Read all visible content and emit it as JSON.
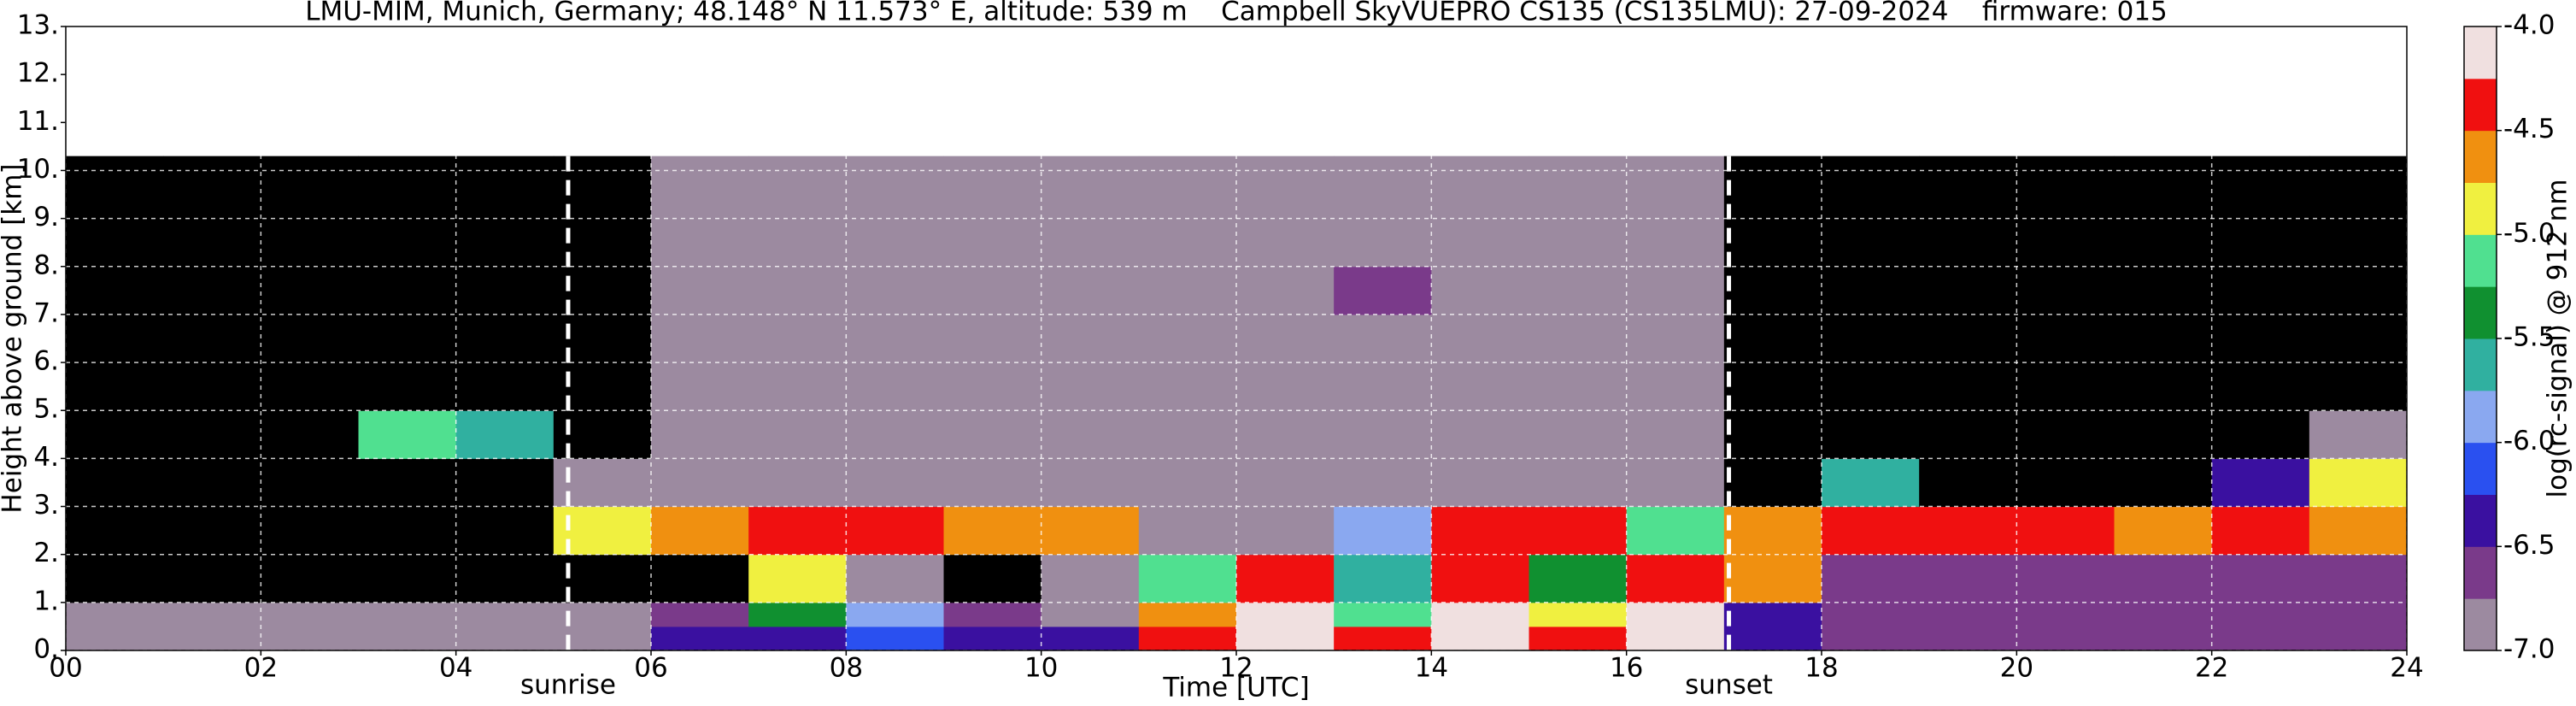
{
  "chart_data": {
    "type": "heatmap",
    "title": "LMU-MIM, Munich, Germany; 48.148° N 11.573° E, altitude: 539 m    Campbell SkyVUEPRO CS135 (CS135LMU): 27-09-2024    firmware: 015",
    "xlabel": "Time [UTC]",
    "ylabel": "Height above ground [km]",
    "colorbar_label": "log(rc-signal) @ 912 nm",
    "x": [
      0,
      1,
      2,
      3,
      4,
      5,
      6,
      7,
      8,
      9,
      10,
      11,
      12,
      13,
      14,
      15,
      16,
      17,
      18,
      19,
      20,
      21,
      22,
      23,
      24
    ],
    "y": [
      0,
      0.5,
      1,
      2,
      3,
      4,
      5,
      6,
      7,
      8,
      9,
      10.3
    ],
    "z": [
      [
        -6.8,
        -6.8,
        -6.8,
        -6.8,
        -6.8,
        -6.8,
        -6.5,
        -6.5,
        -6.2,
        -6.5,
        -6.5,
        -4.5,
        -4.1,
        -4.3,
        -4.1,
        -4.3,
        -4.1,
        -6.3,
        -6.6,
        -6.6,
        -6.6,
        -6.6,
        -6.6,
        -6.6
      ],
      [
        -6.9,
        -6.9,
        -6.9,
        -6.9,
        -6.9,
        -7.0,
        -6.7,
        -5.5,
        -5.8,
        -6.7,
        -6.8,
        -4.6,
        -4.1,
        -5.2,
        -4.1,
        -5.0,
        -4.2,
        -6.5,
        -6.7,
        -6.7,
        -6.7,
        -6.7,
        -6.7,
        -6.7
      ],
      [
        -7.2,
        -7.2,
        -7.2,
        -7.2,
        -7.2,
        -7.2,
        -7.1,
        -5.0,
        -7.0,
        -7.1,
        -7.0,
        -5.2,
        -4.4,
        -5.6,
        -4.3,
        -5.3,
        -4.4,
        -4.6,
        -6.6,
        -6.6,
        -6.6,
        -6.6,
        -6.6,
        -6.6
      ],
      [
        -7.3,
        -7.3,
        -7.3,
        -7.3,
        -7.3,
        -4.8,
        -4.6,
        -4.5,
        -4.5,
        -4.6,
        -4.7,
        -6.9,
        -6.9,
        -5.8,
        -4.5,
        -4.4,
        -5.2,
        -4.6,
        -4.5,
        -4.5,
        -4.5,
        -4.6,
        -4.5,
        -4.6
      ],
      [
        -7.3,
        -7.3,
        -7.3,
        -7.3,
        -7.2,
        -7.0,
        -7.0,
        -7.0,
        -7.0,
        -7.0,
        -7.0,
        -7.0,
        -7.0,
        -7.0,
        -7.0,
        -7.0,
        -7.0,
        -7.3,
        -5.6,
        -7.2,
        -7.2,
        -7.2,
        -6.5,
        -4.8
      ],
      [
        -7.3,
        -7.3,
        -7.3,
        -5.2,
        -5.6,
        -7.1,
        -7.0,
        -7.0,
        -7.0,
        -7.0,
        -7.0,
        -7.0,
        -7.0,
        -7.0,
        -7.0,
        -6.9,
        -7.0,
        -7.3,
        -7.3,
        -7.3,
        -7.3,
        -7.3,
        -7.3,
        -6.8
      ],
      [
        -7.3,
        -7.3,
        -7.3,
        -7.3,
        -7.3,
        -7.1,
        -6.9,
        -6.9,
        -6.9,
        -6.9,
        -6.9,
        -7.0,
        -7.0,
        -6.8,
        -7.0,
        -7.0,
        -6.8,
        -7.3,
        -7.3,
        -7.3,
        -7.3,
        -7.3,
        -7.3,
        -7.3
      ],
      [
        -7.3,
        -7.3,
        -7.3,
        -7.3,
        -7.3,
        -7.1,
        -6.9,
        -6.9,
        -6.9,
        -6.9,
        -6.9,
        -7.0,
        -7.0,
        -6.8,
        -7.0,
        -7.0,
        -6.8,
        -7.3,
        -7.3,
        -7.3,
        -7.3,
        -7.3,
        -7.3,
        -7.3
      ],
      [
        -7.3,
        -7.3,
        -7.3,
        -7.3,
        -7.3,
        -7.1,
        -6.9,
        -6.9,
        -6.9,
        -6.9,
        -6.9,
        -7.0,
        -7.0,
        -6.7,
        -7.0,
        -6.9,
        -6.8,
        -7.3,
        -7.3,
        -7.3,
        -7.3,
        -7.3,
        -7.3,
        -7.3
      ],
      [
        -7.3,
        -7.3,
        -7.3,
        -7.3,
        -7.3,
        -7.1,
        -6.9,
        -6.9,
        -6.9,
        -6.9,
        -6.9,
        -7.0,
        -7.0,
        -6.8,
        -7.0,
        -6.9,
        -6.9,
        -7.3,
        -7.3,
        -7.3,
        -7.3,
        -7.3,
        -7.3,
        -7.3
      ],
      [
        -7.3,
        -7.3,
        -7.3,
        -7.3,
        -7.3,
        -7.1,
        -6.9,
        -6.8,
        -6.9,
        -6.9,
        -6.9,
        -7.0,
        -7.0,
        -6.9,
        -7.0,
        -7.0,
        -6.9,
        -7.3,
        -7.3,
        -7.3,
        -7.3,
        -7.3,
        -7.3,
        -7.3
      ]
    ],
    "xlim": [
      0,
      24
    ],
    "ylim": [
      0,
      13
    ],
    "clim": [
      -7,
      -4
    ],
    "xticks": [
      {
        "value": 0,
        "label": "00"
      },
      {
        "value": 2,
        "label": "02"
      },
      {
        "value": 4,
        "label": "04"
      },
      {
        "value": 6,
        "label": "06"
      },
      {
        "value": 8,
        "label": "08"
      },
      10,
      12,
      14,
      16,
      18,
      20,
      22,
      24
    ],
    "yticks": [
      {
        "value": 0,
        "label": "0."
      },
      {
        "value": 1,
        "label": "1."
      },
      {
        "value": 2,
        "label": "2."
      },
      {
        "value": 3,
        "label": "3."
      },
      {
        "value": 4,
        "label": "4."
      },
      {
        "value": 5,
        "label": "5."
      },
      {
        "value": 6,
        "label": "6."
      },
      {
        "value": 7,
        "label": "7."
      },
      {
        "value": 8,
        "label": "8."
      },
      {
        "value": 9,
        "label": "9."
      },
      {
        "value": 10,
        "label": "10."
      },
      {
        "value": 11,
        "label": "11."
      },
      {
        "value": 12,
        "label": "12."
      },
      {
        "value": 13,
        "label": "13."
      }
    ],
    "cticks": [
      {
        "value": -7,
        "label": "-7.0"
      },
      -6.5,
      {
        "value": -6,
        "label": "-6.0"
      },
      -5.5,
      {
        "value": -5,
        "label": "-5.0"
      },
      -4.5,
      {
        "value": -4,
        "label": "-4.0"
      }
    ],
    "colormap": [
      "#9c8aa0",
      "#7a3a8a",
      "#3a10a0",
      "#2a50f0",
      "#8aa8f0",
      "#30b0a0",
      "#109030",
      "#50e090",
      "#f0f040",
      "#f09010",
      "#f01010",
      "#f0e0e0"
    ],
    "under_color": "#000000",
    "grid": true,
    "annotations": [
      {
        "text": "sunrise",
        "x": 5.15
      },
      {
        "text": "sunset",
        "x": 17.05
      }
    ]
  }
}
